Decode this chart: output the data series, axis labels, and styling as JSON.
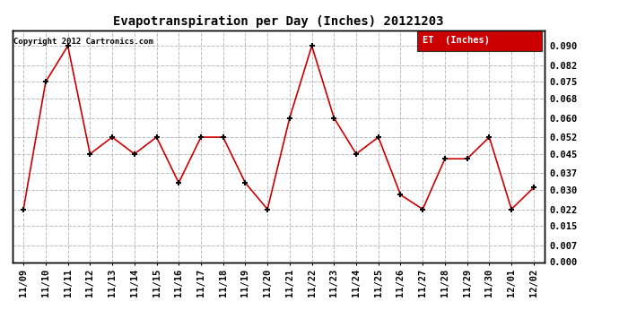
{
  "title": "Evapotranspiration per Day (Inches) 20121203",
  "copyright": "Copyright 2012 Cartronics.com",
  "legend_label": "ET  (Inches)",
  "legend_bg": "#cc0000",
  "legend_fg": "#ffffff",
  "x_labels": [
    "11/09",
    "11/10",
    "11/11",
    "11/12",
    "11/13",
    "11/14",
    "11/15",
    "11/16",
    "11/17",
    "11/18",
    "11/19",
    "11/20",
    "11/21",
    "11/22",
    "11/23",
    "11/24",
    "11/25",
    "11/26",
    "11/27",
    "11/28",
    "11/29",
    "11/30",
    "12/01",
    "12/02"
  ],
  "y_values": [
    0.022,
    0.075,
    0.09,
    0.045,
    0.052,
    0.045,
    0.052,
    0.033,
    0.052,
    0.052,
    0.033,
    0.022,
    0.06,
    0.09,
    0.06,
    0.045,
    0.052,
    0.028,
    0.022,
    0.043,
    0.043,
    0.052,
    0.022,
    0.031
  ],
  "line_color": "#cc0000",
  "marker_color": "#000000",
  "grid_color": "#bbbbbb",
  "bg_color": "#ffffff",
  "ylim": [
    0.0,
    0.0965
  ],
  "yticks": [
    0.0,
    0.007,
    0.015,
    0.022,
    0.03,
    0.037,
    0.045,
    0.052,
    0.06,
    0.068,
    0.075,
    0.082,
    0.09
  ],
  "title_fontsize": 10,
  "tick_fontsize": 7.5
}
